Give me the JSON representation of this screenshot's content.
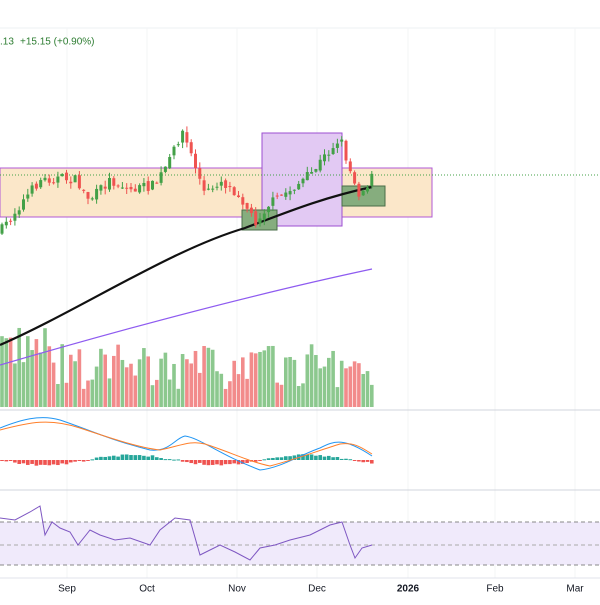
{
  "header": {
    "price_tail": ".13",
    "change": "+15.15 (+0.90%)"
  },
  "time_axis": {
    "labels": [
      "Sep",
      "Oct",
      "Nov",
      "Dec",
      "2026",
      "Feb",
      "Mar"
    ]
  }
}
